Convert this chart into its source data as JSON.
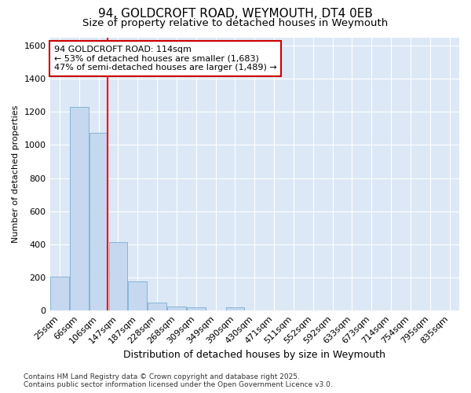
{
  "title": "94, GOLDCROFT ROAD, WEYMOUTH, DT4 0EB",
  "subtitle": "Size of property relative to detached houses in Weymouth",
  "xlabel": "Distribution of detached houses by size in Weymouth",
  "ylabel": "Number of detached properties",
  "categories": [
    "25sqm",
    "66sqm",
    "106sqm",
    "147sqm",
    "187sqm",
    "228sqm",
    "268sqm",
    "309sqm",
    "349sqm",
    "390sqm",
    "430sqm",
    "471sqm",
    "511sqm",
    "552sqm",
    "592sqm",
    "633sqm",
    "673sqm",
    "714sqm",
    "754sqm",
    "795sqm",
    "835sqm"
  ],
  "values": [
    203,
    1232,
    1075,
    415,
    175,
    50,
    25,
    20,
    0,
    20,
    0,
    0,
    0,
    0,
    0,
    0,
    0,
    0,
    0,
    0,
    0
  ],
  "bar_color": "#c5d8ef",
  "bar_edge_color": "#7aadd4",
  "plot_bg_color": "#dce8f5",
  "fig_bg_color": "#ffffff",
  "grid_color": "#ffffff",
  "red_line_x": 2.5,
  "ylim": [
    0,
    1650
  ],
  "yticks": [
    0,
    200,
    400,
    600,
    800,
    1000,
    1200,
    1400,
    1600
  ],
  "annotation_line1": "94 GOLDCROFT ROAD: 114sqm",
  "annotation_line2": "← 53% of detached houses are smaller (1,683)",
  "annotation_line3": "47% of semi-detached houses are larger (1,489) →",
  "annotation_box_color": "#ffffff",
  "annotation_box_edge": "#cc0000",
  "footer_line1": "Contains HM Land Registry data © Crown copyright and database right 2025.",
  "footer_line2": "Contains public sector information licensed under the Open Government Licence v3.0.",
  "title_fontsize": 11,
  "subtitle_fontsize": 9.5,
  "ylabel_fontsize": 8,
  "xlabel_fontsize": 9,
  "tick_fontsize": 8,
  "annotation_fontsize": 8,
  "footer_fontsize": 6.5
}
